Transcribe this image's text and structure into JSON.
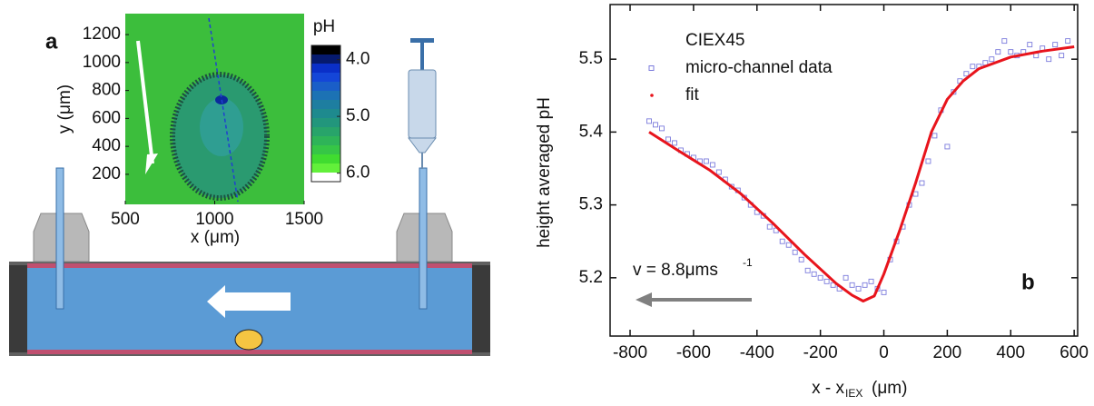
{
  "chart_data": [
    {
      "type": "image",
      "panel_label": "a",
      "xlabel": "x (μm)",
      "ylabel": "y (μm)",
      "xlim": [
        500,
        1500
      ],
      "xticks": [
        500,
        1000,
        1500
      ],
      "ylim": [
        -15,
        1350
      ],
      "yticks": [
        200,
        400,
        600,
        800,
        1000,
        1200
      ],
      "colorbar": {
        "label": "pH",
        "clim": [
          3.75,
          6.15
        ],
        "ticks": [
          {
            "value": 4,
            "label": "4.0"
          },
          {
            "value": 5,
            "label": "5.0"
          },
          {
            "value": 6,
            "label": "6.0"
          }
        ],
        "colors": [
          "#000000",
          "#061a6e",
          "#0a2fc8",
          "#1446d8",
          "#1a5ec8",
          "#1c72b4",
          "#1e7ea0",
          "#1e8a8e",
          "#22967c",
          "#28a46a",
          "#2eb458",
          "#36c646",
          "#40dc30",
          "#62f03a",
          "#ffffff"
        ]
      }
    },
    {
      "type": "scatter",
      "panel_label": "b",
      "legend_title": "CIEX45",
      "ylabel": "height averaged pH",
      "xlabel": {
        "main": "x - x",
        "sub": "IEX",
        "unit": "(μm)"
      },
      "annotation": {
        "main": "v = 8.8μms",
        "sup": "-1"
      },
      "xlim": [
        -863,
        611
      ],
      "xticks": [
        -800,
        -600,
        -400,
        -200,
        0,
        200,
        400,
        600
      ],
      "ylim": [
        5.12,
        5.575
      ],
      "yticks": [
        5.2,
        5.3,
        5.4,
        5.5
      ],
      "series": [
        {
          "name": "micro-channel data",
          "color": "#7b7bdc",
          "marker": "square",
          "x": [
            -740,
            -720,
            -700,
            -680,
            -660,
            -640,
            -620,
            -600,
            -580,
            -560,
            -540,
            -520,
            -500,
            -480,
            -460,
            -440,
            -420,
            -400,
            -380,
            -360,
            -340,
            -320,
            -300,
            -280,
            -260,
            -240,
            -220,
            -200,
            -180,
            -160,
            -140,
            -120,
            -100,
            -80,
            -60,
            -40,
            -20,
            0,
            20,
            40,
            60,
            80,
            100,
            120,
            140,
            160,
            180,
            200,
            220,
            240,
            260,
            280,
            300,
            320,
            340,
            360,
            380,
            400,
            420,
            440,
            460,
            480,
            500,
            520,
            540,
            560,
            580
          ],
          "values": [
            5.415,
            5.41,
            5.405,
            5.39,
            5.385,
            5.375,
            5.37,
            5.365,
            5.36,
            5.36,
            5.355,
            5.345,
            5.335,
            5.325,
            5.32,
            5.31,
            5.3,
            5.29,
            5.285,
            5.27,
            5.265,
            5.25,
            5.245,
            5.235,
            5.225,
            5.21,
            5.205,
            5.2,
            5.195,
            5.19,
            5.185,
            5.2,
            5.19,
            5.185,
            5.19,
            5.195,
            5.185,
            5.18,
            5.225,
            5.25,
            5.27,
            5.3,
            5.315,
            5.33,
            5.36,
            5.395,
            5.43,
            5.38,
            5.455,
            5.47,
            5.48,
            5.49,
            5.49,
            5.495,
            5.5,
            5.51,
            5.525,
            5.51,
            5.505,
            5.51,
            5.52,
            5.505,
            5.515,
            5.5,
            5.52,
            5.505,
            5.525
          ]
        },
        {
          "name": "fit",
          "color": "#e8141c",
          "marker": "line",
          "x": [
            -740,
            -650,
            -550,
            -450,
            -350,
            -250,
            -150,
            -100,
            -65,
            -30,
            0,
            50,
            100,
            150,
            200,
            250,
            300,
            400,
            500,
            600
          ],
          "values": [
            5.4,
            5.375,
            5.348,
            5.315,
            5.275,
            5.232,
            5.192,
            5.176,
            5.168,
            5.175,
            5.205,
            5.265,
            5.33,
            5.4,
            5.445,
            5.47,
            5.487,
            5.503,
            5.511,
            5.517
          ]
        }
      ]
    }
  ]
}
